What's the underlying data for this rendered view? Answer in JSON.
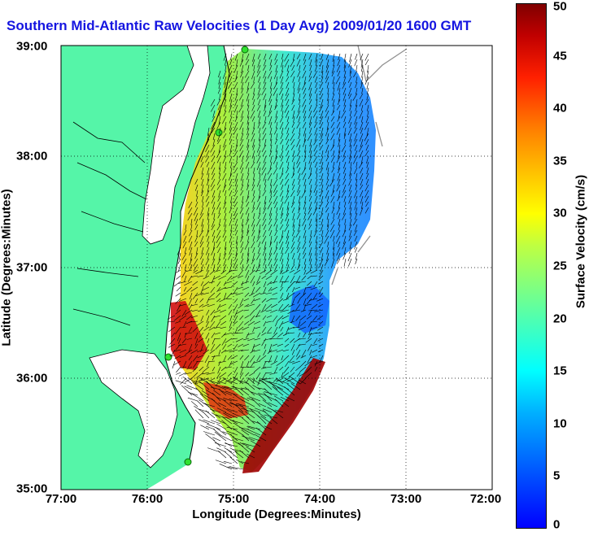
{
  "title": "Southern Mid-Atlantic Raw Velocities (1 Day Avg) 2009/01/20 1600 GMT",
  "xlabel": "Longitude (Degrees:Minutes)",
  "ylabel": "Latitude (Degrees:Minutes)",
  "colorbar_label": "Surface Velocity (cm/s)",
  "colors": {
    "title": "#1515e0",
    "land": "#55f5a8",
    "water": "#ffffff",
    "coast": "#000000",
    "grid": "#000000"
  },
  "chart_data": {
    "type": "heatmap",
    "title": "Southern Mid-Atlantic Raw Velocities (1 Day Avg) 2009/01/20 1600 GMT",
    "xlabel": "Longitude (Degrees:Minutes)",
    "ylabel": "Latitude (Degrees:Minutes)",
    "x_ticks": [
      "77:00",
      "76:00",
      "75:00",
      "74:00",
      "73:00",
      "72:00"
    ],
    "y_ticks": [
      "39:00",
      "38:00",
      "37:00",
      "36:00",
      "35:00"
    ],
    "xlim": [
      -77,
      -72
    ],
    "ylim": [
      35,
      39
    ],
    "grid": true,
    "colorbar": {
      "label": "Surface Velocity (cm/s)",
      "ticks": [
        0,
        5,
        10,
        15,
        20,
        25,
        30,
        35,
        40,
        45,
        50
      ],
      "range": [
        0,
        50
      ]
    }
  }
}
